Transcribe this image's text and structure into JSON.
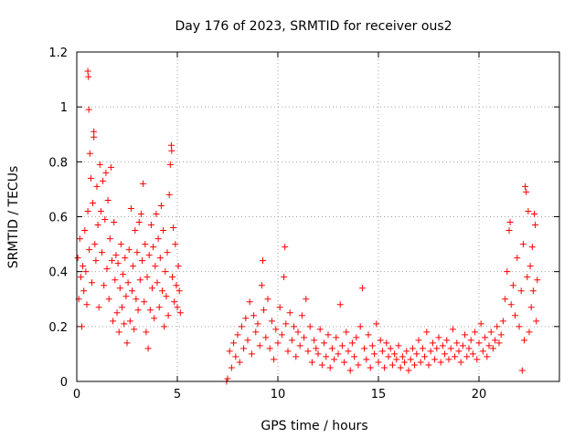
{
  "chart_data": {
    "type": "scatter",
    "title": "Day 176 of 2023, SRMTID for receiver ous2",
    "xlabel": "GPS time / hours",
    "ylabel": "SRMTID / TECUs",
    "xlim": [
      0,
      24
    ],
    "ylim": [
      0,
      1.2
    ],
    "xticks": [
      0,
      5,
      10,
      15,
      20
    ],
    "xtick_labels": [
      "0",
      "5",
      "10",
      "15",
      "20"
    ],
    "yticks": [
      0,
      0.2,
      0.4,
      0.6,
      0.8,
      1.0,
      1.2
    ],
    "ytick_labels": [
      "0",
      "0.2",
      "0.4",
      "0.6",
      "0.8",
      "1",
      "1.2"
    ],
    "grid": true,
    "marker": "+",
    "color": "#ff0000",
    "series": [
      {
        "name": "SRMTID",
        "points": [
          [
            0.05,
            0.45
          ],
          [
            0.1,
            0.3
          ],
          [
            0.15,
            0.52
          ],
          [
            0.2,
            0.38
          ],
          [
            0.25,
            0.2
          ],
          [
            0.3,
            0.42
          ],
          [
            0.35,
            0.33
          ],
          [
            0.4,
            0.55
          ],
          [
            0.45,
            0.4
          ],
          [
            0.5,
            0.28
          ],
          [
            0.55,
            0.62
          ],
          [
            0.55,
            1.13
          ],
          [
            0.58,
            1.11
          ],
          [
            0.6,
            0.99
          ],
          [
            0.62,
            0.48
          ],
          [
            0.65,
            0.83
          ],
          [
            0.7,
            0.74
          ],
          [
            0.75,
            0.36
          ],
          [
            0.8,
            0.65
          ],
          [
            0.85,
            0.91
          ],
          [
            0.85,
            0.89
          ],
          [
            0.9,
            0.5
          ],
          [
            0.95,
            0.44
          ],
          [
            1.0,
            0.71
          ],
          [
            1.05,
            0.57
          ],
          [
            1.1,
            0.27
          ],
          [
            1.15,
            0.79
          ],
          [
            1.2,
            0.62
          ],
          [
            1.25,
            0.47
          ],
          [
            1.3,
            0.73
          ],
          [
            1.35,
            0.35
          ],
          [
            1.4,
            0.59
          ],
          [
            1.45,
            0.76
          ],
          [
            1.5,
            0.41
          ],
          [
            1.55,
            0.66
          ],
          [
            1.6,
            0.3
          ],
          [
            1.65,
            0.52
          ],
          [
            1.7,
            0.78
          ],
          [
            1.75,
            0.44
          ],
          [
            1.8,
            0.22
          ],
          [
            1.85,
            0.58
          ],
          [
            1.9,
            0.37
          ],
          [
            1.95,
            0.46
          ],
          [
            2.0,
            0.25
          ],
          [
            2.05,
            0.43
          ],
          [
            2.1,
            0.18
          ],
          [
            2.15,
            0.34
          ],
          [
            2.2,
            0.5
          ],
          [
            2.25,
            0.27
          ],
          [
            2.3,
            0.39
          ],
          [
            2.35,
            0.21
          ],
          [
            2.4,
            0.45
          ],
          [
            2.45,
            0.31
          ],
          [
            2.5,
            0.14
          ],
          [
            2.55,
            0.36
          ],
          [
            2.6,
            0.48
          ],
          [
            2.65,
            0.22
          ],
          [
            2.7,
            0.63
          ],
          [
            2.75,
            0.33
          ],
          [
            2.8,
            0.42
          ],
          [
            2.85,
            0.19
          ],
          [
            2.9,
            0.55
          ],
          [
            2.95,
            0.3
          ],
          [
            3.0,
            0.47
          ],
          [
            3.05,
            0.26
          ],
          [
            3.1,
            0.58
          ],
          [
            3.15,
            0.37
          ],
          [
            3.2,
            0.61
          ],
          [
            3.25,
            0.44
          ],
          [
            3.3,
            0.72
          ],
          [
            3.35,
            0.29
          ],
          [
            3.4,
            0.5
          ],
          [
            3.45,
            0.18
          ],
          [
            3.5,
            0.38
          ],
          [
            3.55,
            0.12
          ],
          [
            3.6,
            0.46
          ],
          [
            3.65,
            0.26
          ],
          [
            3.7,
            0.57
          ],
          [
            3.75,
            0.34
          ],
          [
            3.8,
            0.49
          ],
          [
            3.85,
            0.23
          ],
          [
            3.9,
            0.42
          ],
          [
            3.95,
            0.61
          ],
          [
            4.0,
            0.36
          ],
          [
            4.05,
            0.52
          ],
          [
            4.1,
            0.27
          ],
          [
            4.15,
            0.45
          ],
          [
            4.2,
            0.64
          ],
          [
            4.25,
            0.33
          ],
          [
            4.3,
            0.55
          ],
          [
            4.35,
            0.2
          ],
          [
            4.4,
            0.4
          ],
          [
            4.45,
            0.31
          ],
          [
            4.5,
            0.47
          ],
          [
            4.55,
            0.24
          ],
          [
            4.6,
            0.68
          ],
          [
            4.65,
            0.79
          ],
          [
            4.7,
            0.86
          ],
          [
            4.72,
            0.84
          ],
          [
            4.75,
            0.38
          ],
          [
            4.8,
            0.56
          ],
          [
            4.85,
            0.29
          ],
          [
            4.9,
            0.5
          ],
          [
            4.95,
            0.35
          ],
          [
            5.0,
            0.27
          ],
          [
            5.05,
            0.42
          ],
          [
            5.1,
            0.33
          ],
          [
            5.15,
            0.25
          ],
          [
            7.45,
            0.0
          ],
          [
            7.5,
            0.01
          ],
          [
            7.6,
            0.11
          ],
          [
            7.7,
            0.05
          ],
          [
            7.8,
            0.14
          ],
          [
            7.9,
            0.09
          ],
          [
            8.0,
            0.17
          ],
          [
            8.1,
            0.07
          ],
          [
            8.2,
            0.2
          ],
          [
            8.3,
            0.12
          ],
          [
            8.4,
            0.23
          ],
          [
            8.5,
            0.15
          ],
          [
            8.6,
            0.29
          ],
          [
            8.7,
            0.1
          ],
          [
            8.8,
            0.24
          ],
          [
            8.9,
            0.18
          ],
          [
            9.0,
            0.21
          ],
          [
            9.1,
            0.13
          ],
          [
            9.2,
            0.35
          ],
          [
            9.25,
            0.44
          ],
          [
            9.3,
            0.26
          ],
          [
            9.4,
            0.16
          ],
          [
            9.5,
            0.3
          ],
          [
            9.6,
            0.12
          ],
          [
            9.7,
            0.22
          ],
          [
            9.8,
            0.08
          ],
          [
            9.9,
            0.19
          ],
          [
            10.0,
            0.14
          ],
          [
            10.1,
            0.27
          ],
          [
            10.2,
            0.17
          ],
          [
            10.3,
            0.38
          ],
          [
            10.35,
            0.49
          ],
          [
            10.4,
            0.21
          ],
          [
            10.5,
            0.11
          ],
          [
            10.6,
            0.25
          ],
          [
            10.7,
            0.15
          ],
          [
            10.8,
            0.2
          ],
          [
            10.9,
            0.09
          ],
          [
            11.0,
            0.18
          ],
          [
            11.1,
            0.13
          ],
          [
            11.2,
            0.24
          ],
          [
            11.3,
            0.16
          ],
          [
            11.4,
            0.3
          ],
          [
            11.5,
            0.11
          ],
          [
            11.6,
            0.2
          ],
          [
            11.7,
            0.07
          ],
          [
            11.8,
            0.15
          ],
          [
            11.9,
            0.12
          ],
          [
            12.0,
            0.1
          ],
          [
            12.1,
            0.19
          ],
          [
            12.2,
            0.06
          ],
          [
            12.3,
            0.14
          ],
          [
            12.4,
            0.09
          ],
          [
            12.5,
            0.17
          ],
          [
            12.6,
            0.05
          ],
          [
            12.7,
            0.12
          ],
          [
            12.8,
            0.08
          ],
          [
            12.9,
            0.16
          ],
          [
            13.0,
            0.1
          ],
          [
            13.1,
            0.28
          ],
          [
            13.2,
            0.13
          ],
          [
            13.3,
            0.07
          ],
          [
            13.4,
            0.18
          ],
          [
            13.5,
            0.11
          ],
          [
            13.6,
            0.04
          ],
          [
            13.7,
            0.14
          ],
          [
            13.8,
            0.09
          ],
          [
            13.9,
            0.16
          ],
          [
            14.0,
            0.06
          ],
          [
            14.1,
            0.2
          ],
          [
            14.2,
            0.34
          ],
          [
            14.3,
            0.12
          ],
          [
            14.4,
            0.08
          ],
          [
            14.5,
            0.17
          ],
          [
            14.6,
            0.05
          ],
          [
            14.7,
            0.13
          ],
          [
            14.8,
            0.1
          ],
          [
            14.9,
            0.21
          ],
          [
            15.0,
            0.07
          ],
          [
            15.1,
            0.15
          ],
          [
            15.2,
            0.11
          ],
          [
            15.3,
            0.05
          ],
          [
            15.4,
            0.14
          ],
          [
            15.5,
            0.09
          ],
          [
            15.6,
            0.12
          ],
          [
            15.7,
            0.06
          ],
          [
            15.8,
            0.1
          ],
          [
            15.9,
            0.08
          ],
          [
            16.0,
            0.13
          ],
          [
            16.1,
            0.05
          ],
          [
            16.2,
            0.09
          ],
          [
            16.3,
            0.07
          ],
          [
            16.4,
            0.11
          ],
          [
            16.5,
            0.04
          ],
          [
            16.6,
            0.08
          ],
          [
            16.7,
            0.12
          ],
          [
            16.8,
            0.06
          ],
          [
            16.9,
            0.1
          ],
          [
            17.0,
            0.15
          ],
          [
            17.1,
            0.07
          ],
          [
            17.2,
            0.12
          ],
          [
            17.3,
            0.09
          ],
          [
            17.4,
            0.18
          ],
          [
            17.5,
            0.06
          ],
          [
            17.6,
            0.11
          ],
          [
            17.7,
            0.14
          ],
          [
            17.8,
            0.08
          ],
          [
            17.9,
            0.12
          ],
          [
            18.0,
            0.16
          ],
          [
            18.1,
            0.07
          ],
          [
            18.2,
            0.13
          ],
          [
            18.3,
            0.1
          ],
          [
            18.4,
            0.15
          ],
          [
            18.5,
            0.08
          ],
          [
            18.6,
            0.12
          ],
          [
            18.7,
            0.19
          ],
          [
            18.8,
            0.09
          ],
          [
            18.9,
            0.14
          ],
          [
            19.0,
            0.11
          ],
          [
            19.1,
            0.07
          ],
          [
            19.2,
            0.13
          ],
          [
            19.3,
            0.17
          ],
          [
            19.4,
            0.09
          ],
          [
            19.5,
            0.12
          ],
          [
            19.6,
            0.15
          ],
          [
            19.7,
            0.1
          ],
          [
            19.8,
            0.18
          ],
          [
            19.9,
            0.08
          ],
          [
            20.0,
            0.14
          ],
          [
            20.1,
            0.21
          ],
          [
            20.2,
            0.11
          ],
          [
            20.3,
            0.16
          ],
          [
            20.4,
            0.09
          ],
          [
            20.5,
            0.13
          ],
          [
            20.6,
            0.18
          ],
          [
            20.7,
            0.12
          ],
          [
            20.8,
            0.15
          ],
          [
            20.9,
            0.2
          ],
          [
            21.0,
            0.14
          ],
          [
            21.1,
            0.17
          ],
          [
            21.2,
            0.22
          ],
          [
            21.3,
            0.3
          ],
          [
            21.4,
            0.4
          ],
          [
            21.5,
            0.55
          ],
          [
            21.55,
            0.58
          ],
          [
            21.6,
            0.28
          ],
          [
            21.7,
            0.35
          ],
          [
            21.8,
            0.24
          ],
          [
            21.9,
            0.45
          ],
          [
            22.0,
            0.2
          ],
          [
            22.1,
            0.33
          ],
          [
            22.15,
            0.04
          ],
          [
            22.2,
            0.5
          ],
          [
            22.25,
            0.15
          ],
          [
            22.3,
            0.71
          ],
          [
            22.35,
            0.69
          ],
          [
            22.4,
            0.38
          ],
          [
            22.45,
            0.62
          ],
          [
            22.5,
            0.18
          ],
          [
            22.55,
            0.42
          ],
          [
            22.6,
            0.27
          ],
          [
            22.65,
            0.49
          ],
          [
            22.7,
            0.33
          ],
          [
            22.75,
            0.61
          ],
          [
            22.8,
            0.57
          ],
          [
            22.85,
            0.22
          ],
          [
            22.9,
            0.37
          ]
        ]
      }
    ]
  }
}
